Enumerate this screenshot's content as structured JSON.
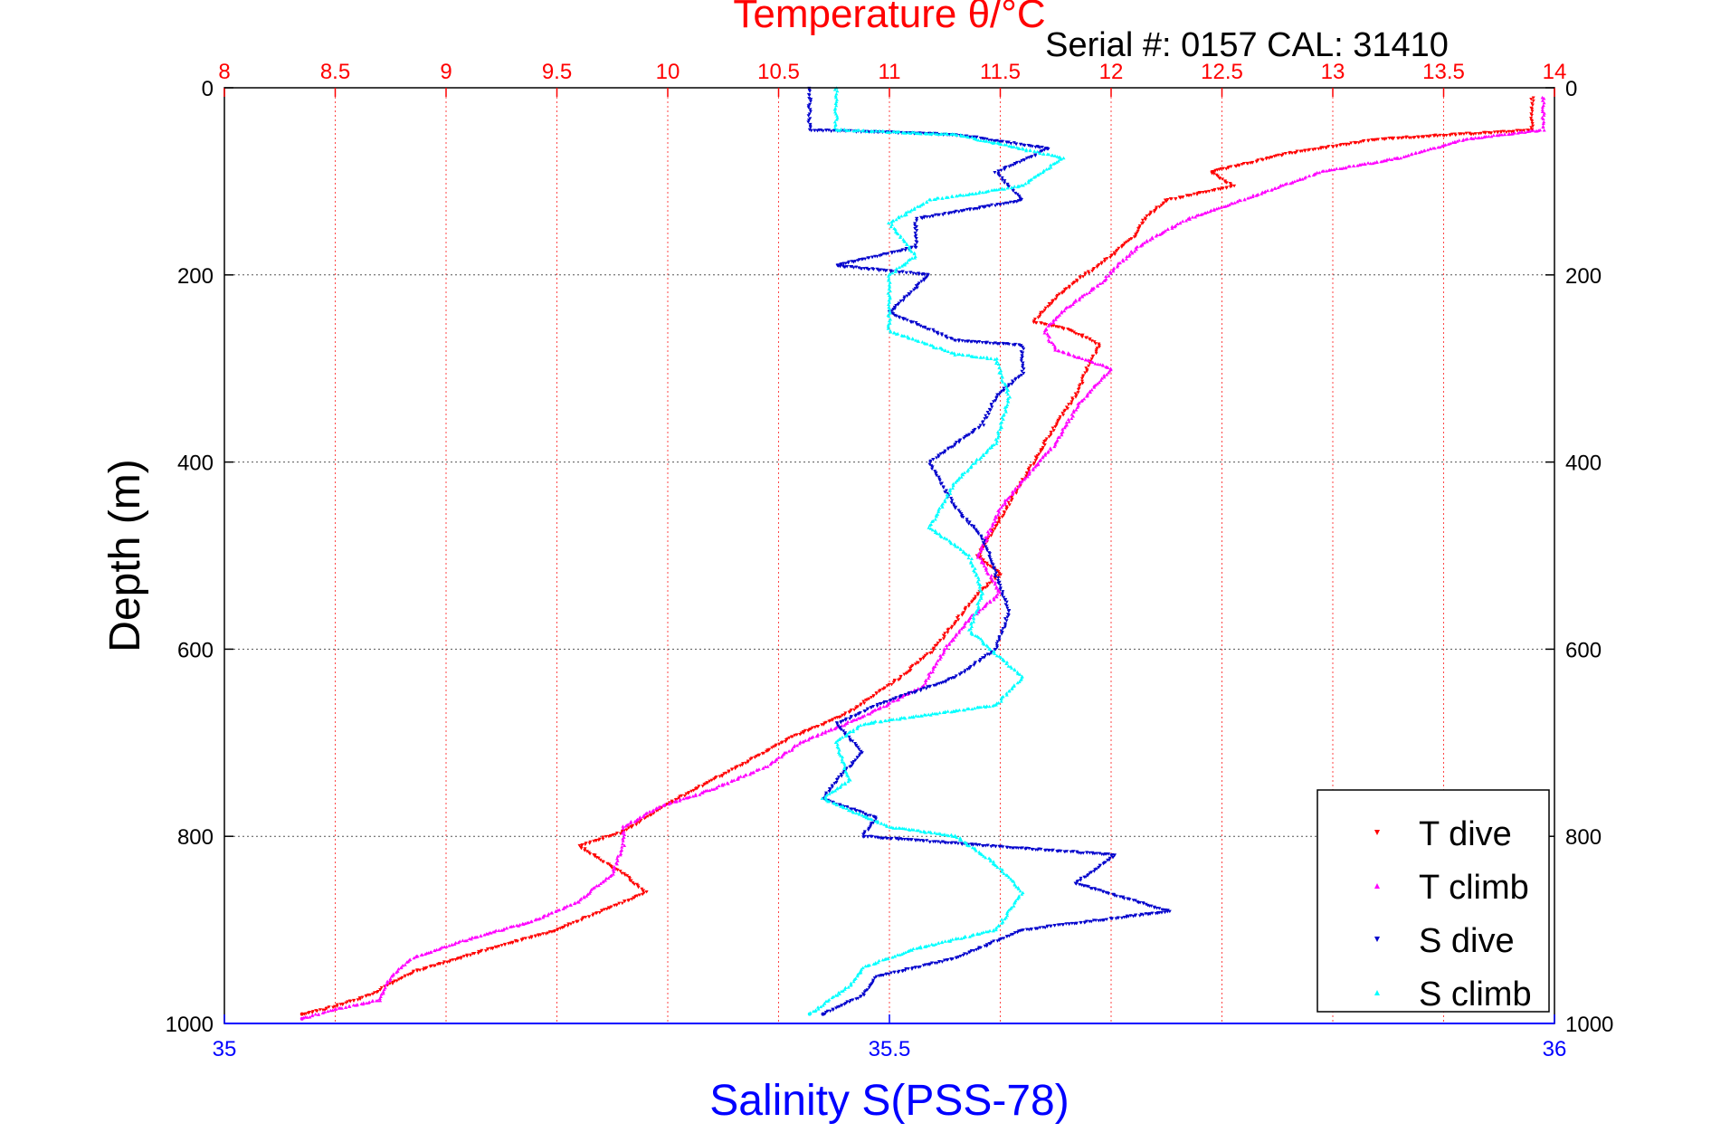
{
  "chart_data": {
    "type": "scatter",
    "title": "Temperature θ/°C",
    "subtitle": "Serial #: 0157  CAL: 31410",
    "xlabel": "Salinity S(PSS-78)",
    "ylabel": "Depth (m)",
    "salinity_axis": {
      "range": [
        35,
        36
      ],
      "ticks": [
        "35",
        "35.5",
        "36"
      ]
    },
    "temperature_axis": {
      "range": [
        8,
        14
      ],
      "ticks": [
        "8",
        "8.5",
        "9",
        "9.5",
        "10",
        "10.5",
        "11",
        "11.5",
        "12",
        "12.5",
        "13",
        "13.5",
        "14"
      ]
    },
    "depth_axis": {
      "range": [
        0,
        1000
      ],
      "reversed": true,
      "ticks": [
        "0",
        "200",
        "400",
        "600",
        "800",
        "1000"
      ]
    },
    "grid": true,
    "legend_position": "bottom-right",
    "colors": {
      "title": "#ff0000",
      "xlabel": "#0000ff",
      "t_dive": "#ff0000",
      "t_climb": "#ff00ff",
      "s_dive": "#0000cc",
      "s_climb": "#00ffff"
    },
    "series": [
      {
        "name": "T dive",
        "axis": "temperature",
        "color": "#ff0000",
        "points": [
          [
            13.9,
            10
          ],
          [
            13.9,
            45
          ],
          [
            13.55,
            50
          ],
          [
            13.2,
            55
          ],
          [
            12.8,
            70
          ],
          [
            12.45,
            90
          ],
          [
            12.55,
            105
          ],
          [
            12.25,
            120
          ],
          [
            12.15,
            140
          ],
          [
            12.1,
            160
          ],
          [
            12.0,
            180
          ],
          [
            11.85,
            205
          ],
          [
            11.75,
            225
          ],
          [
            11.65,
            250
          ],
          [
            11.8,
            258
          ],
          [
            11.9,
            268
          ],
          [
            11.95,
            275
          ],
          [
            11.9,
            295
          ],
          [
            11.85,
            325
          ],
          [
            11.75,
            360
          ],
          [
            11.65,
            400
          ],
          [
            11.55,
            440
          ],
          [
            11.45,
            480
          ],
          [
            11.4,
            500
          ],
          [
            11.5,
            520
          ],
          [
            11.4,
            540
          ],
          [
            11.3,
            570
          ],
          [
            11.2,
            600
          ],
          [
            11.05,
            630
          ],
          [
            10.8,
            670
          ],
          [
            10.55,
            695
          ],
          [
            10.4,
            715
          ],
          [
            10.2,
            740
          ],
          [
            10.0,
            765
          ],
          [
            9.9,
            780
          ],
          [
            9.8,
            795
          ],
          [
            9.6,
            810
          ],
          [
            9.8,
            840
          ],
          [
            9.9,
            860
          ],
          [
            9.7,
            880
          ],
          [
            9.5,
            900
          ],
          [
            9.2,
            920
          ],
          [
            8.85,
            945
          ],
          [
            8.65,
            970
          ],
          [
            8.45,
            985
          ],
          [
            8.35,
            990
          ]
        ]
      },
      {
        "name": "T climb",
        "axis": "temperature",
        "color": "#ff00ff",
        "points": [
          [
            13.95,
            10
          ],
          [
            13.95,
            45
          ],
          [
            13.6,
            55
          ],
          [
            13.3,
            75
          ],
          [
            12.95,
            90
          ],
          [
            12.65,
            115
          ],
          [
            12.35,
            140
          ],
          [
            12.15,
            165
          ],
          [
            12.05,
            185
          ],
          [
            11.95,
            210
          ],
          [
            11.8,
            235
          ],
          [
            11.7,
            260
          ],
          [
            11.75,
            280
          ],
          [
            12.0,
            300
          ],
          [
            11.85,
            340
          ],
          [
            11.75,
            380
          ],
          [
            11.6,
            420
          ],
          [
            11.5,
            450
          ],
          [
            11.4,
            500
          ],
          [
            11.5,
            540
          ],
          [
            11.35,
            570
          ],
          [
            11.25,
            600
          ],
          [
            11.15,
            640
          ],
          [
            10.9,
            670
          ],
          [
            10.6,
            700
          ],
          [
            10.45,
            725
          ],
          [
            10.2,
            750
          ],
          [
            9.95,
            770
          ],
          [
            9.8,
            790
          ],
          [
            9.8,
            810
          ],
          [
            9.75,
            840
          ],
          [
            9.6,
            870
          ],
          [
            9.4,
            890
          ],
          [
            9.1,
            910
          ],
          [
            8.85,
            930
          ],
          [
            8.75,
            950
          ],
          [
            8.7,
            975
          ],
          [
            8.5,
            985
          ],
          [
            8.35,
            995
          ]
        ]
      },
      {
        "name": "S dive",
        "axis": "salinity",
        "color": "#0000cc",
        "points": [
          [
            35.44,
            0
          ],
          [
            35.44,
            45
          ],
          [
            35.55,
            50
          ],
          [
            35.62,
            65
          ],
          [
            35.58,
            90
          ],
          [
            35.6,
            120
          ],
          [
            35.52,
            140
          ],
          [
            35.52,
            170
          ],
          [
            35.46,
            190
          ],
          [
            35.53,
            200
          ],
          [
            35.5,
            240
          ],
          [
            35.55,
            270
          ],
          [
            35.6,
            275
          ],
          [
            35.6,
            305
          ],
          [
            35.58,
            330
          ],
          [
            35.57,
            360
          ],
          [
            35.53,
            400
          ],
          [
            35.55,
            450
          ],
          [
            35.57,
            480
          ],
          [
            35.58,
            520
          ],
          [
            35.59,
            560
          ],
          [
            35.58,
            600
          ],
          [
            35.55,
            630
          ],
          [
            35.49,
            660
          ],
          [
            35.46,
            680
          ],
          [
            35.48,
            710
          ],
          [
            35.46,
            740
          ],
          [
            35.45,
            760
          ],
          [
            35.49,
            780
          ],
          [
            35.48,
            800
          ],
          [
            35.67,
            820
          ],
          [
            35.64,
            850
          ],
          [
            35.71,
            880
          ],
          [
            35.6,
            900
          ],
          [
            35.55,
            930
          ],
          [
            35.49,
            950
          ],
          [
            35.48,
            970
          ],
          [
            35.45,
            990
          ]
        ]
      },
      {
        "name": "S climb",
        "axis": "salinity",
        "color": "#00ffff",
        "points": [
          [
            35.46,
            0
          ],
          [
            35.46,
            45
          ],
          [
            35.55,
            50
          ],
          [
            35.63,
            75
          ],
          [
            35.6,
            105
          ],
          [
            35.53,
            120
          ],
          [
            35.5,
            145
          ],
          [
            35.52,
            180
          ],
          [
            35.5,
            200
          ],
          [
            35.5,
            260
          ],
          [
            35.55,
            285
          ],
          [
            35.58,
            290
          ],
          [
            35.59,
            330
          ],
          [
            35.58,
            380
          ],
          [
            35.55,
            420
          ],
          [
            35.53,
            470
          ],
          [
            35.56,
            500
          ],
          [
            35.57,
            540
          ],
          [
            35.56,
            580
          ],
          [
            35.6,
            630
          ],
          [
            35.58,
            660
          ],
          [
            35.48,
            680
          ],
          [
            35.46,
            700
          ],
          [
            35.47,
            740
          ],
          [
            35.45,
            760
          ],
          [
            35.5,
            790
          ],
          [
            35.55,
            800
          ],
          [
            35.58,
            830
          ],
          [
            35.6,
            860
          ],
          [
            35.58,
            900
          ],
          [
            35.52,
            920
          ],
          [
            35.48,
            940
          ],
          [
            35.47,
            960
          ],
          [
            35.44,
            990
          ]
        ]
      }
    ]
  }
}
